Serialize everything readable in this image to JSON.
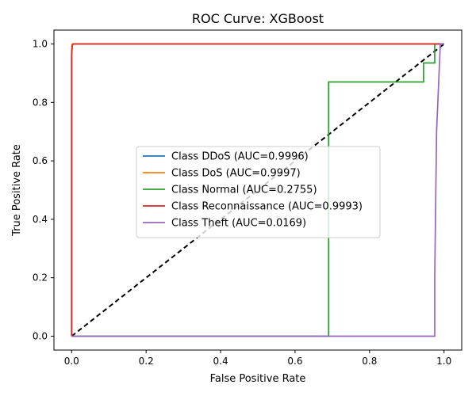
{
  "chart_data": {
    "type": "line",
    "title": "ROC Curve: XGBoost",
    "xlabel": "False Positive Rate",
    "ylabel": "True Positive Rate",
    "xlim": [
      -0.0475,
      1.0475
    ],
    "ylim": [
      -0.0475,
      1.0475
    ],
    "xticks": [
      0.0,
      0.2,
      0.4,
      0.6,
      0.8,
      1.0
    ],
    "yticks": [
      0.0,
      0.2,
      0.4,
      0.6,
      0.8,
      1.0
    ],
    "xtick_labels": [
      "0.0",
      "0.2",
      "0.4",
      "0.6",
      "0.8",
      "1.0"
    ],
    "ytick_labels": [
      "0.0",
      "0.2",
      "0.4",
      "0.6",
      "0.8",
      "1.0"
    ],
    "grid": false,
    "legend_position": "center",
    "series": [
      {
        "name": "Class DDoS (AUC=0.9996)",
        "color": "#1f77b4",
        "x": [
          0.0,
          0.0,
          0.001,
          0.003,
          0.02,
          1.0
        ],
        "y": [
          0.0,
          0.97,
          0.995,
          1.0,
          1.0,
          1.0
        ]
      },
      {
        "name": "Class DoS (AUC=0.9997)",
        "color": "#ff7f0e",
        "x": [
          0.0,
          0.0,
          0.001,
          0.002,
          0.02,
          1.0
        ],
        "y": [
          0.0,
          0.98,
          0.997,
          1.0,
          1.0,
          1.0
        ]
      },
      {
        "name": "Class Normal (AUC=0.2755)",
        "color": "#2ca02c",
        "x": [
          0.0,
          0.69,
          0.69,
          0.945,
          0.945,
          0.975,
          0.975,
          1.0
        ],
        "y": [
          0.0,
          0.0,
          0.87,
          0.87,
          0.935,
          0.935,
          1.0,
          1.0
        ]
      },
      {
        "name": "Class Reconnaissance (AUC=0.9993)",
        "color": "#d62728",
        "x": [
          0.0,
          0.0,
          0.002,
          0.004,
          0.63,
          1.0
        ],
        "y": [
          0.0,
          0.96,
          0.995,
          1.0,
          1.0,
          1.0
        ]
      },
      {
        "name": "Class Theft (AUC=0.0169)",
        "color": "#9467bd",
        "x": [
          0.0,
          0.975,
          0.975,
          0.98,
          0.99,
          1.0
        ],
        "y": [
          0.0,
          0.0,
          0.2,
          0.7,
          1.0,
          1.0
        ]
      }
    ],
    "reference_line": {
      "color": "#000000",
      "style": "dashed",
      "x": [
        0,
        1
      ],
      "y": [
        0,
        1
      ]
    }
  }
}
